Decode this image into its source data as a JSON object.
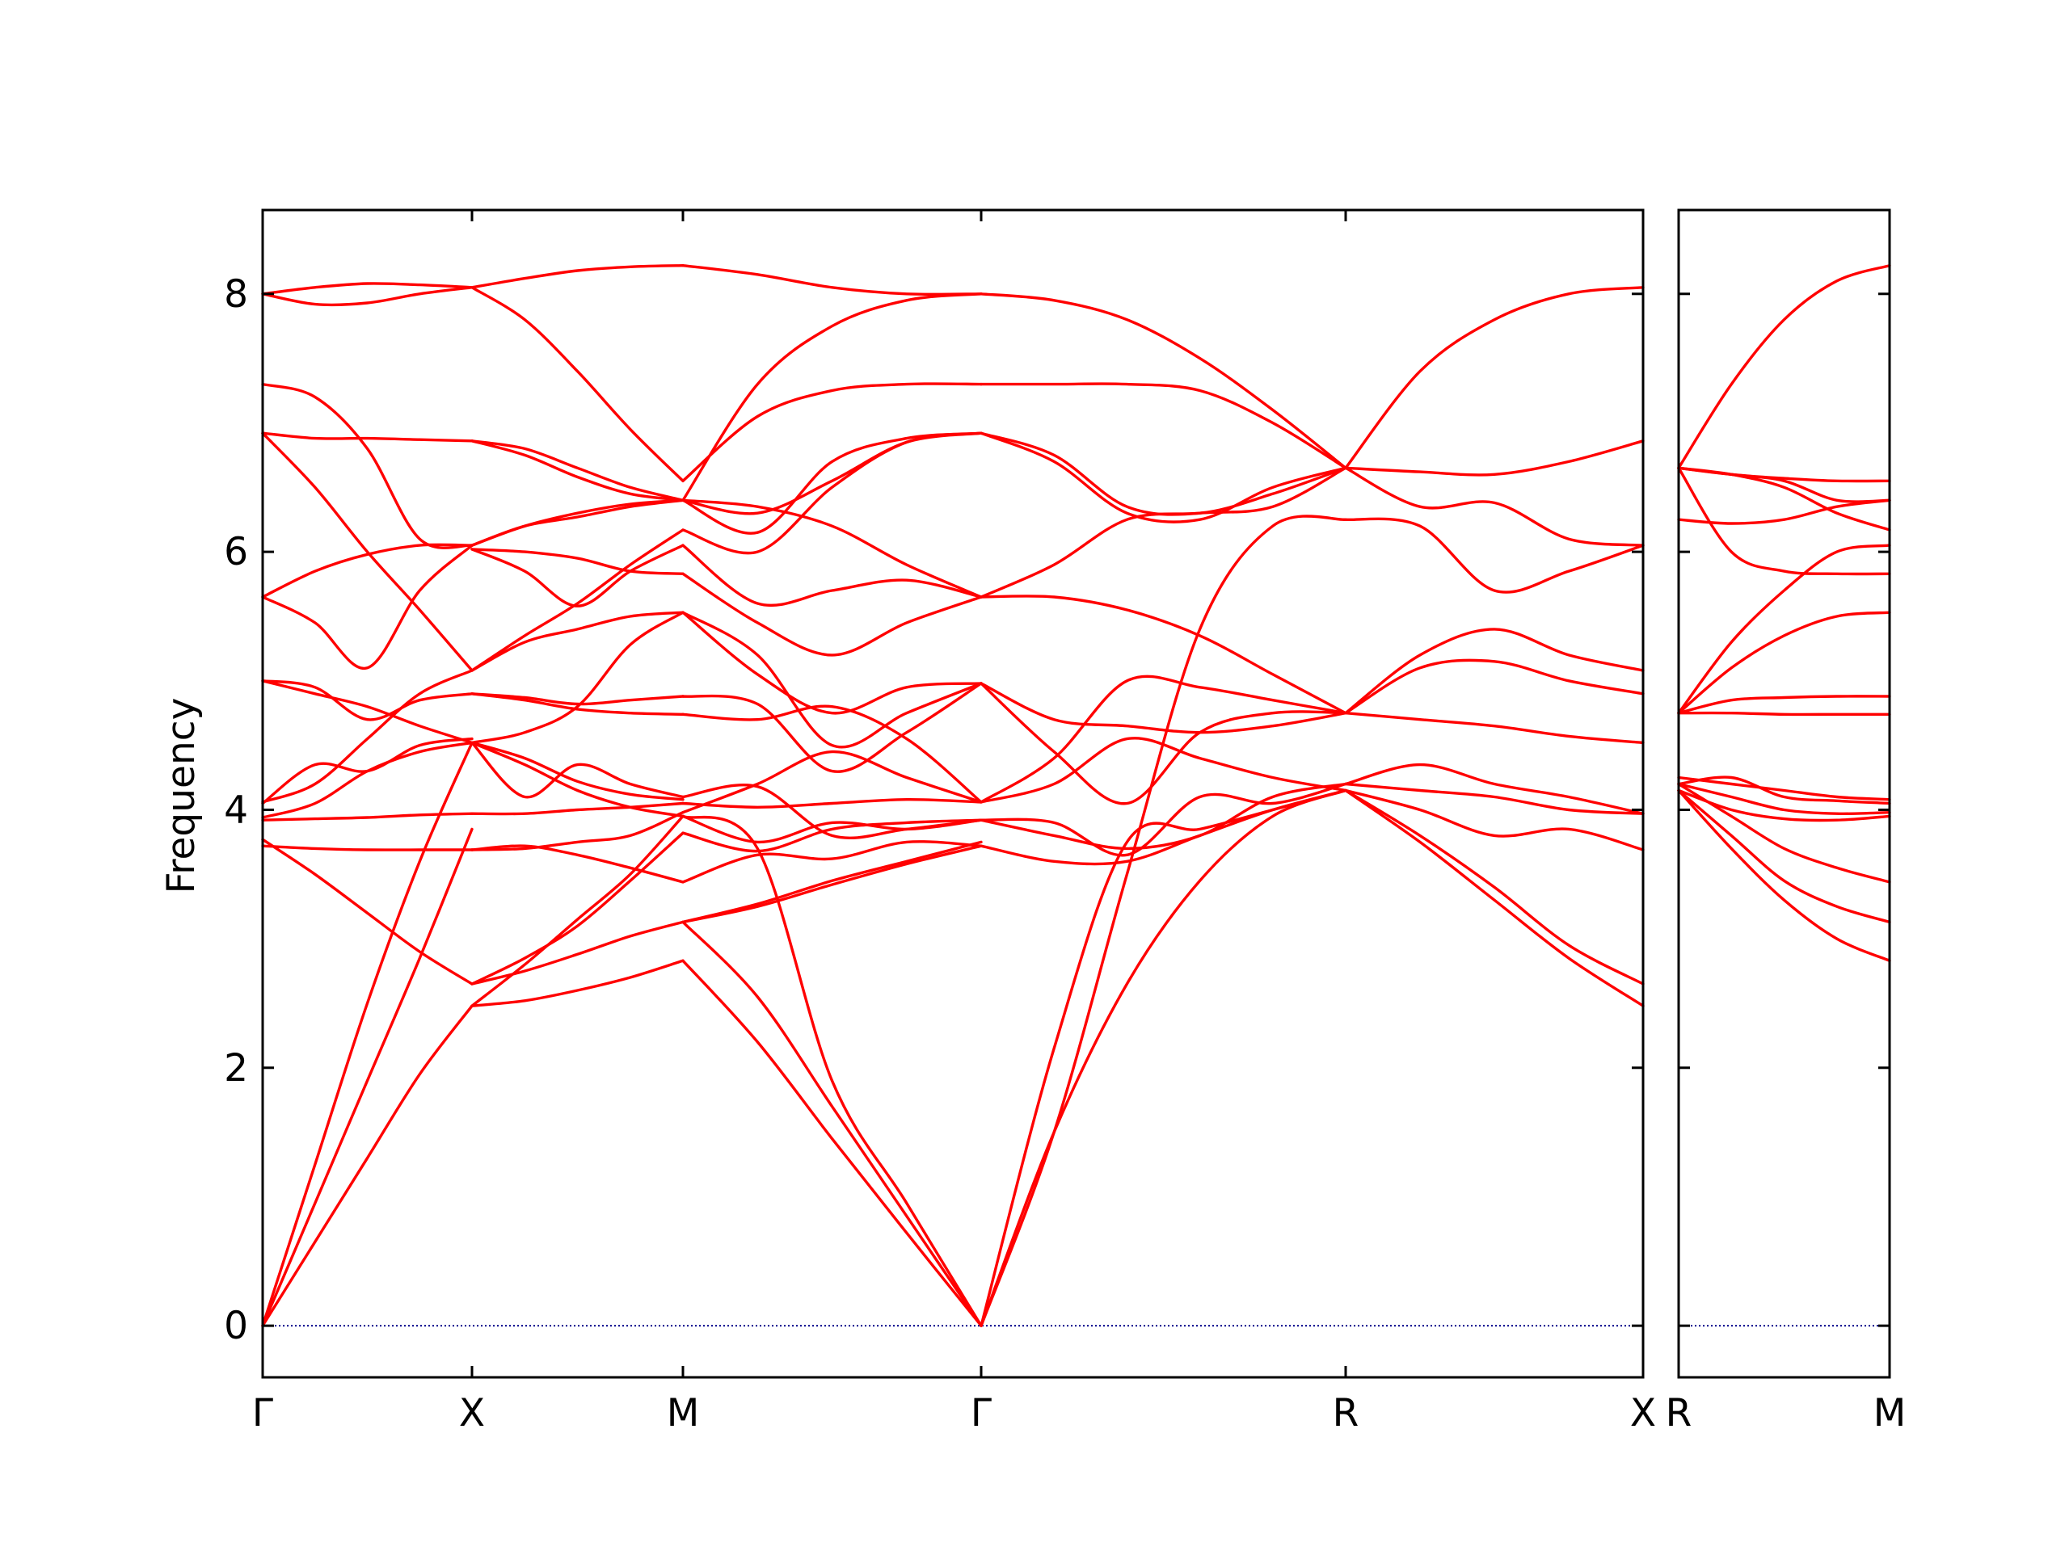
{
  "chart_data": {
    "type": "line",
    "ylabel": "Frequency",
    "ylim": [
      -0.4,
      8.65
    ],
    "yticks": [
      "0",
      "2",
      "4",
      "6",
      "8"
    ],
    "line_color": "#ff0000",
    "zero_line_color": "#00008b",
    "panels": [
      {
        "name": "left",
        "xticks": [
          "Γ",
          "X",
          "M",
          "Γ",
          "R",
          "X"
        ],
        "segments": [
          {
            "from": "Γ",
            "to": "X",
            "x": [
              0,
              0.25,
              0.5,
              0.75,
              1
            ],
            "bands": [
              [
                0,
                0.65,
                1.3,
                1.95,
                2.48
              ],
              [
                0,
                0.95,
                1.9,
                2.85,
                3.85
              ],
              [
                0,
                1.25,
                2.5,
                3.6,
                4.52
              ],
              [
                3.72,
                3.7,
                3.69,
                3.69,
                3.69
              ],
              [
                3.77,
                3.5,
                3.2,
                2.9,
                2.65
              ],
              [
                3.92,
                3.93,
                3.94,
                3.96,
                3.97
              ],
              [
                3.94,
                4.05,
                4.3,
                4.45,
                4.52
              ],
              [
                4.05,
                4.35,
                4.3,
                4.5,
                4.55
              ],
              [
                4.06,
                4.2,
                4.55,
                4.9,
                5.08
              ],
              [
                5.0,
                4.95,
                4.7,
                4.85,
                4.9
              ],
              [
                5.0,
                4.9,
                4.8,
                4.65,
                4.52
              ],
              [
                5.65,
                5.45,
                5.1,
                5.7,
                6.05
              ],
              [
                5.65,
                5.85,
                5.98,
                6.05,
                6.05
              ],
              [
                6.92,
                6.5,
                6.0,
                5.55,
                5.08
              ],
              [
                6.92,
                6.88,
                6.88,
                6.87,
                6.86
              ],
              [
                7.3,
                7.2,
                6.8,
                6.1,
                6.05
              ],
              [
                8.0,
                7.92,
                7.93,
                8.0,
                8.05
              ],
              [
                8.0,
                8.05,
                8.08,
                8.07,
                8.05
              ]
            ]
          },
          {
            "from": "X",
            "to": "M",
            "x": [
              0,
              0.25,
              0.5,
              0.75,
              1
            ],
            "bands": [
              [
                2.48,
                2.52,
                2.6,
                2.7,
                2.83
              ],
              [
                2.65,
                2.75,
                2.88,
                3.02,
                3.13
              ],
              [
                2.65,
                2.85,
                3.1,
                3.45,
                3.82
              ],
              [
                2.48,
                2.8,
                3.15,
                3.5,
                3.95
              ],
              [
                3.69,
                3.7,
                3.75,
                3.8,
                3.98
              ],
              [
                3.69,
                3.72,
                3.65,
                3.55,
                3.44
              ],
              [
                3.97,
                3.97,
                4.0,
                4.02,
                4.05
              ],
              [
                4.52,
                4.4,
                4.22,
                4.12,
                4.08
              ],
              [
                4.52,
                4.35,
                4.15,
                4.02,
                3.95
              ],
              [
                4.52,
                4.1,
                4.35,
                4.2,
                4.1
              ],
              [
                4.9,
                4.85,
                4.78,
                4.75,
                4.74
              ],
              [
                4.9,
                4.87,
                4.82,
                4.85,
                4.88
              ],
              [
                4.52,
                4.6,
                4.8,
                5.28,
                5.53
              ],
              [
                5.08,
                5.3,
                5.4,
                5.5,
                5.53
              ],
              [
                5.08,
                5.35,
                5.6,
                5.9,
                6.17
              ],
              [
                6.02,
                6.0,
                5.95,
                5.85,
                5.83
              ],
              [
                6.02,
                5.85,
                5.58,
                5.85,
                6.05
              ],
              [
                6.05,
                6.2,
                6.3,
                6.37,
                6.4
              ],
              [
                6.05,
                6.2,
                6.27,
                6.35,
                6.4
              ],
              [
                6.86,
                6.8,
                6.65,
                6.5,
                6.4
              ],
              [
                6.86,
                6.75,
                6.58,
                6.45,
                6.4
              ],
              [
                8.05,
                7.8,
                7.4,
                6.95,
                6.55
              ],
              [
                8.05,
                8.12,
                8.18,
                8.21,
                8.22
              ]
            ]
          },
          {
            "from": "M",
            "to": "Γ",
            "x": [
              0,
              0.25,
              0.5,
              0.75,
              1
            ],
            "bands": [
              [
                2.83,
                2.2,
                1.45,
                0.72,
                0
              ],
              [
                3.13,
                2.55,
                1.7,
                0.85,
                0
              ],
              [
                3.95,
                3.7,
                1.9,
                0.95,
                0
              ],
              [
                3.13,
                3.25,
                3.42,
                3.58,
                3.72
              ],
              [
                3.13,
                3.27,
                3.45,
                3.6,
                3.75
              ],
              [
                3.44,
                3.65,
                3.62,
                3.75,
                3.72
              ],
              [
                3.82,
                3.68,
                3.85,
                3.9,
                3.92
              ],
              [
                3.95,
                3.75,
                3.9,
                3.85,
                3.92
              ],
              [
                4.1,
                4.18,
                3.8,
                3.85,
                3.92
              ],
              [
                4.05,
                4.02,
                4.05,
                4.08,
                4.06
              ],
              [
                3.98,
                4.2,
                4.45,
                4.25,
                4.06
              ],
              [
                4.74,
                4.7,
                4.8,
                4.55,
                4.06
              ],
              [
                4.88,
                4.82,
                4.3,
                4.6,
                4.98
              ],
              [
                5.53,
                5.2,
                4.5,
                4.75,
                4.98
              ],
              [
                5.53,
                5.05,
                4.75,
                4.95,
                4.98
              ],
              [
                5.83,
                5.45,
                5.2,
                5.45,
                5.65
              ],
              [
                6.05,
                5.6,
                5.7,
                5.78,
                5.65
              ],
              [
                6.17,
                6.0,
                6.5,
                6.85,
                6.92
              ],
              [
                6.4,
                6.3,
                6.55,
                6.85,
                6.92
              ],
              [
                6.4,
                6.15,
                6.7,
                6.88,
                6.92
              ],
              [
                6.4,
                6.35,
                6.2,
                5.9,
                5.65
              ],
              [
                6.55,
                7.05,
                7.25,
                7.3,
                7.3
              ],
              [
                6.4,
                7.3,
                7.75,
                7.95,
                8.0
              ],
              [
                8.22,
                8.15,
                8.05,
                8.0,
                8.0
              ]
            ]
          },
          {
            "from": "Γ",
            "to": "R",
            "x": [
              0,
              0.2,
              0.4,
              0.6,
              0.8,
              1
            ],
            "bands": [
              [
                0,
                1.5,
                2.65,
                3.45,
                3.95,
                4.15
              ],
              [
                0,
                2.15,
                3.75,
                3.85,
                4.0,
                4.15
              ],
              [
                3.72,
                3.6,
                3.6,
                3.8,
                4.0,
                4.15
              ],
              [
                3.92,
                3.8,
                3.7,
                3.8,
                4.1,
                4.2
              ],
              [
                3.92,
                3.9,
                3.65,
                4.1,
                4.05,
                4.2
              ],
              [
                4.06,
                4.2,
                4.55,
                4.4,
                4.25,
                4.15
              ],
              [
                4.06,
                4.4,
                5.0,
                4.95,
                4.85,
                4.75
              ],
              [
                4.98,
                4.7,
                4.65,
                4.6,
                4.65,
                4.75
              ],
              [
                4.98,
                4.45,
                4.05,
                4.6,
                4.75,
                4.75
              ],
              [
                5.65,
                5.65,
                5.55,
                5.35,
                5.05,
                4.75
              ],
              [
                5.65,
                5.9,
                6.25,
                6.3,
                6.35,
                6.65
              ],
              [
                6.92,
                6.7,
                6.3,
                6.25,
                6.5,
                6.65
              ],
              [
                6.92,
                6.75,
                6.35,
                6.3,
                6.45,
                6.65
              ],
              [
                7.3,
                7.3,
                7.3,
                7.25,
                7.0,
                6.65
              ],
              [
                8.0,
                7.95,
                7.8,
                7.5,
                7.1,
                6.65
              ],
              [
                0,
                1.5,
                3.5,
                5.4,
                6.2,
                6.25
              ]
            ]
          },
          {
            "from": "R",
            "to": "X",
            "x": [
              0,
              0.25,
              0.5,
              0.75,
              1
            ],
            "bands": [
              [
                4.15,
                3.75,
                3.3,
                2.85,
                2.48
              ],
              [
                4.15,
                3.8,
                3.4,
                2.95,
                2.65
              ],
              [
                4.15,
                4.0,
                3.8,
                3.85,
                3.69
              ],
              [
                4.2,
                4.35,
                4.2,
                4.1,
                3.97
              ],
              [
                4.2,
                4.15,
                4.1,
                4.0,
                3.97
              ],
              [
                4.75,
                4.7,
                4.65,
                4.57,
                4.52
              ],
              [
                4.75,
                5.1,
                5.15,
                5.0,
                4.9
              ],
              [
                4.75,
                5.2,
                5.4,
                5.2,
                5.08
              ],
              [
                6.25,
                6.2,
                5.7,
                5.85,
                6.05
              ],
              [
                6.65,
                6.35,
                6.38,
                6.1,
                6.05
              ],
              [
                6.65,
                6.62,
                6.6,
                6.7,
                6.86
              ],
              [
                6.65,
                7.4,
                7.8,
                8.0,
                8.05
              ]
            ]
          }
        ]
      },
      {
        "name": "right",
        "xticks": [
          "R",
          "M"
        ],
        "segments": [
          {
            "from": "R",
            "to": "M",
            "x": [
              0,
              0.25,
              0.5,
              0.75,
              1
            ],
            "bands": [
              [
                4.15,
                3.7,
                3.3,
                3.0,
                2.83
              ],
              [
                4.15,
                3.8,
                3.45,
                3.25,
                3.13
              ],
              [
                4.2,
                3.95,
                3.7,
                3.55,
                3.44
              ],
              [
                4.15,
                4.0,
                3.93,
                3.92,
                3.95
              ],
              [
                4.2,
                4.1,
                4.0,
                3.97,
                3.98
              ],
              [
                4.2,
                4.25,
                4.1,
                4.07,
                4.05
              ],
              [
                4.25,
                4.2,
                4.15,
                4.1,
                4.08
              ],
              [
                4.75,
                4.75,
                4.74,
                4.74,
                4.74
              ],
              [
                4.75,
                4.85,
                4.87,
                4.88,
                4.88
              ],
              [
                4.75,
                5.1,
                5.35,
                5.5,
                5.53
              ],
              [
                4.75,
                5.3,
                5.7,
                6.0,
                6.05
              ],
              [
                6.25,
                6.22,
                6.25,
                6.35,
                6.4
              ],
              [
                6.65,
                6.0,
                5.85,
                5.83,
                5.83
              ],
              [
                6.65,
                6.6,
                6.5,
                6.3,
                6.17
              ],
              [
                6.65,
                6.6,
                6.55,
                6.4,
                6.4
              ],
              [
                6.65,
                6.6,
                6.57,
                6.55,
                6.55
              ],
              [
                6.65,
                7.3,
                7.8,
                8.1,
                8.22
              ]
            ]
          }
        ]
      }
    ]
  }
}
